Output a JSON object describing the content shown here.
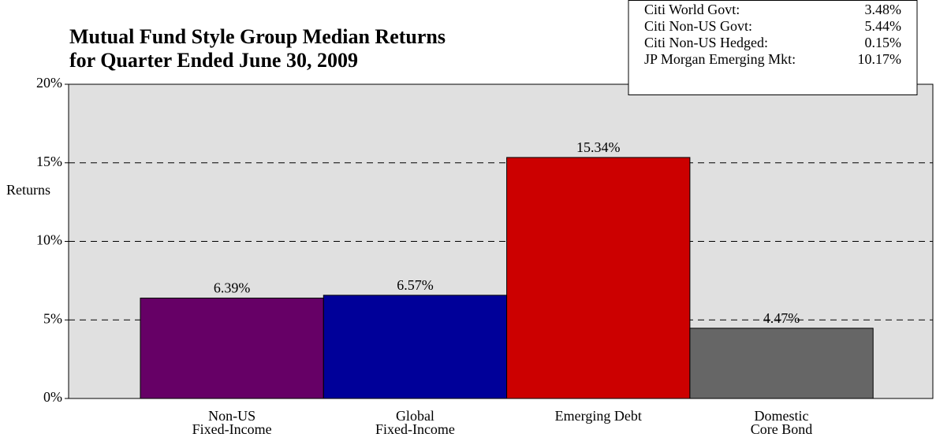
{
  "chart_data": {
    "type": "bar",
    "title": "Mutual Fund Style Group Median Returns\nfor Quarter Ended June 30, 2009",
    "y_label": "Returns",
    "categories": [
      "Non-US\nFixed-Income",
      "Global\nFixed-Income",
      "Emerging Debt",
      "Domestic\nCore Bond"
    ],
    "values": [
      6.39,
      6.57,
      15.34,
      4.47
    ],
    "value_labels": [
      "6.39%",
      "6.57%",
      "15.34%",
      "4.47%"
    ],
    "colors": [
      "#660066",
      "#000099",
      "#cc0000",
      "#666666"
    ],
    "ylim": [
      0,
      20
    ],
    "yticks": [
      {
        "value": 0,
        "label": "0%"
      },
      {
        "value": 5,
        "label": "5%"
      },
      {
        "value": 10,
        "label": "10%"
      },
      {
        "value": 15,
        "label": "15%"
      },
      {
        "value": 20,
        "label": "20%"
      }
    ],
    "grid": true,
    "annotations": [
      {
        "label": "Citi World Govt:",
        "value": "3.48%"
      },
      {
        "label": "Citi Non-US Govt:",
        "value": "5.44%"
      },
      {
        "label": "Citi Non-US Hedged:",
        "value": "0.15%"
      },
      {
        "label": "JP Morgan Emerging Mkt:",
        "value": "10.17%"
      }
    ]
  }
}
